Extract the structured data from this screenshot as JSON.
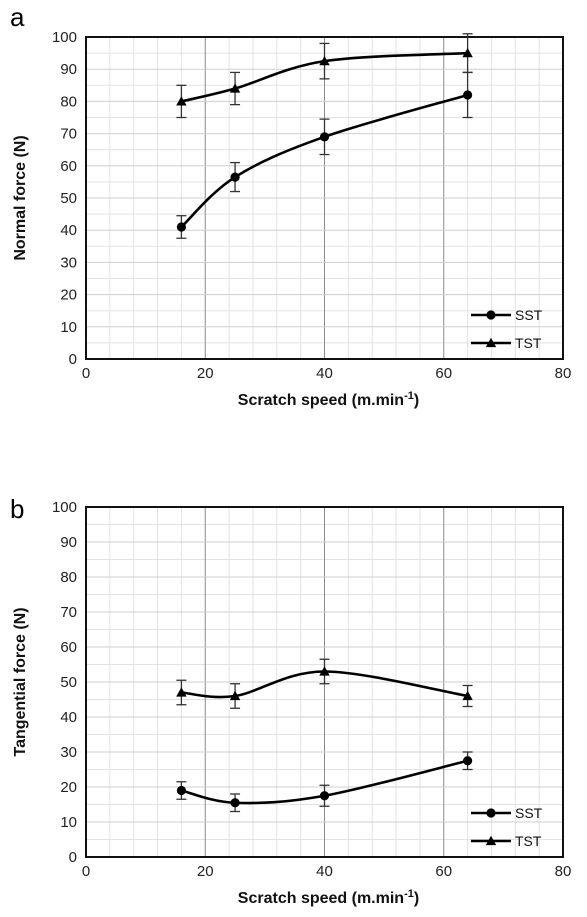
{
  "chart_data": [
    {
      "panel": "a",
      "type": "line",
      "xlabel": "Scratch speed (m.min",
      "xlabel_sup": "-1",
      "xlabel_end": ")",
      "ylabel": "Normal force (N)",
      "xlim": [
        0,
        80
      ],
      "ylim": [
        0,
        100
      ],
      "xticks": [
        0,
        20,
        40,
        60,
        80
      ],
      "yticks": [
        0,
        10,
        20,
        30,
        40,
        50,
        60,
        70,
        80,
        90,
        100
      ],
      "grid": true,
      "legend_position": "bottom-right",
      "series": [
        {
          "name": "SST",
          "marker": "circle",
          "x": [
            16,
            25,
            40,
            64
          ],
          "y": [
            41,
            56.5,
            69,
            82
          ],
          "err": [
            3.5,
            4.5,
            5.5,
            7
          ]
        },
        {
          "name": "TST",
          "marker": "triangle",
          "x": [
            16,
            25,
            40,
            64
          ],
          "y": [
            80,
            84,
            92.5,
            95
          ],
          "err": [
            5,
            5,
            5.5,
            6
          ]
        }
      ]
    },
    {
      "panel": "b",
      "type": "line",
      "xlabel": "Scratch speed (m.min",
      "xlabel_sup": "-1",
      "xlabel_end": ")",
      "ylabel": "Tangential force (N)",
      "xlim": [
        0,
        80
      ],
      "ylim": [
        0,
        100
      ],
      "xticks": [
        0,
        20,
        40,
        60,
        80
      ],
      "yticks": [
        0,
        10,
        20,
        30,
        40,
        50,
        60,
        70,
        80,
        90,
        100
      ],
      "grid": true,
      "legend_position": "bottom-right",
      "series": [
        {
          "name": "SST",
          "marker": "circle",
          "x": [
            16,
            25,
            40,
            64
          ],
          "y": [
            19,
            15.5,
            17.5,
            27.5
          ],
          "err": [
            2.5,
            2.5,
            3,
            2.5
          ]
        },
        {
          "name": "TST",
          "marker": "triangle",
          "x": [
            16,
            25,
            40,
            64
          ],
          "y": [
            47,
            46,
            53,
            46
          ],
          "err": [
            3.5,
            3.5,
            3.5,
            3
          ]
        }
      ]
    }
  ]
}
